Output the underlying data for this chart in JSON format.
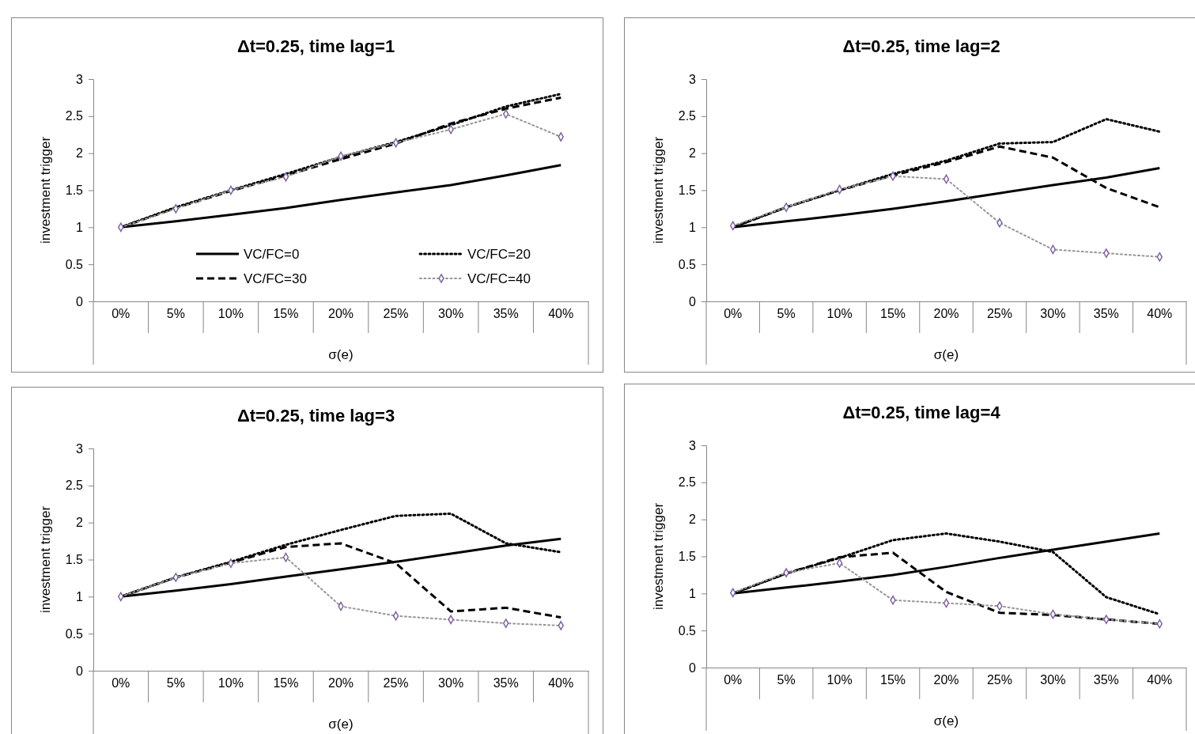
{
  "chart_data": [
    {
      "type": "line",
      "title": "Δt=0.25, time lag=1",
      "xlabel": "σ(e)",
      "ylabel": "investment trigger",
      "categories": [
        "0%",
        "5%",
        "10%",
        "15%",
        "20%",
        "25%",
        "30%",
        "35%",
        "40%"
      ],
      "ylim": [
        0,
        3
      ],
      "yticks": [
        0,
        0.5,
        1,
        1.5,
        2,
        2.5,
        3
      ],
      "grid": false,
      "legend": "bottom",
      "series": [
        {
          "name": "VC/FC=0",
          "color": "#000000",
          "line_style": "solid",
          "marker": "none",
          "values": [
            1,
            1.08,
            1.17,
            1.26,
            1.37,
            1.47,
            1.57,
            1.7,
            1.84
          ]
        },
        {
          "name": "VC/FC=20",
          "color": "#000000",
          "line_style": "dotted",
          "marker": "none",
          "values": [
            1,
            1.27,
            1.5,
            1.72,
            1.95,
            2.15,
            2.38,
            2.63,
            2.8
          ]
        },
        {
          "name": "VC/FC=30",
          "color": "#000000",
          "line_style": "dashed",
          "marker": "none",
          "values": [
            1,
            1.26,
            1.49,
            1.7,
            1.92,
            2.13,
            2.4,
            2.6,
            2.75
          ]
        },
        {
          "name": "VC/FC=40",
          "color": "#969696",
          "line_style": "dotted",
          "marker": "diamond",
          "values": [
            1,
            1.25,
            1.5,
            1.68,
            1.96,
            2.14,
            2.32,
            2.53,
            2.22
          ]
        }
      ]
    },
    {
      "type": "line",
      "title": "Δt=0.25, time lag=2",
      "xlabel": "σ(e)",
      "ylabel": "investment trigger",
      "categories": [
        "0%",
        "5%",
        "10%",
        "15%",
        "20%",
        "25%",
        "30%",
        "35%",
        "40%"
      ],
      "ylim": [
        0,
        3
      ],
      "yticks": [
        0,
        0.5,
        1,
        1.5,
        2,
        2.5,
        3
      ],
      "grid": false,
      "series": [
        {
          "color": "#000000",
          "line_style": "solid",
          "marker": "none",
          "values": [
            1,
            1.08,
            1.16,
            1.25,
            1.35,
            1.46,
            1.57,
            1.67,
            1.8
          ]
        },
        {
          "color": "#000000",
          "line_style": "dotted",
          "marker": "none",
          "values": [
            1,
            1.27,
            1.5,
            1.72,
            1.9,
            2.13,
            2.15,
            2.46,
            2.29
          ]
        },
        {
          "color": "#000000",
          "line_style": "dashed",
          "marker": "none",
          "values": [
            1,
            1.27,
            1.5,
            1.7,
            1.88,
            2.09,
            1.94,
            1.53,
            1.27
          ]
        },
        {
          "color": "#969696",
          "line_style": "dotted",
          "marker": "diamond",
          "values": [
            1.02,
            1.27,
            1.51,
            1.69,
            1.65,
            1.06,
            0.7,
            0.65,
            0.6
          ]
        }
      ]
    },
    {
      "type": "line",
      "title": "Δt=0.25, time lag=3",
      "xlabel": "σ(e)",
      "ylabel": "investment trigger",
      "categories": [
        "0%",
        "5%",
        "10%",
        "15%",
        "20%",
        "25%",
        "30%",
        "35%",
        "40%"
      ],
      "ylim": [
        0,
        3
      ],
      "yticks": [
        0,
        0.5,
        1,
        1.5,
        2,
        2.5,
        3
      ],
      "grid": false,
      "series": [
        {
          "color": "#000000",
          "line_style": "solid",
          "marker": "none",
          "values": [
            1,
            1.08,
            1.17,
            1.27,
            1.37,
            1.47,
            1.58,
            1.69,
            1.78
          ]
        },
        {
          "color": "#000000",
          "line_style": "dotted",
          "marker": "none",
          "values": [
            1,
            1.26,
            1.47,
            1.7,
            1.9,
            2.09,
            2.12,
            1.72,
            1.6
          ]
        },
        {
          "color": "#000000",
          "line_style": "dashed",
          "marker": "none",
          "values": [
            1,
            1.26,
            1.46,
            1.67,
            1.72,
            1.45,
            0.8,
            0.85,
            0.72
          ]
        },
        {
          "color": "#969696",
          "line_style": "dotted",
          "marker": "diamond",
          "values": [
            1,
            1.26,
            1.45,
            1.53,
            0.87,
            0.74,
            0.69,
            0.64,
            0.61
          ]
        }
      ]
    },
    {
      "type": "line",
      "title": "Δt=0.25, time lag=4",
      "xlabel": "σ(e)",
      "ylabel": "investment trigger",
      "categories": [
        "0%",
        "5%",
        "10%",
        "15%",
        "20%",
        "25%",
        "30%",
        "35%",
        "40%"
      ],
      "ylim": [
        0,
        3
      ],
      "yticks": [
        0,
        0.5,
        1,
        1.5,
        2,
        2.5,
        3
      ],
      "grid": false,
      "series": [
        {
          "color": "#000000",
          "line_style": "solid",
          "marker": "none",
          "values": [
            1,
            1.08,
            1.16,
            1.25,
            1.36,
            1.48,
            1.59,
            1.7,
            1.81
          ]
        },
        {
          "color": "#000000",
          "line_style": "dotted",
          "marker": "none",
          "values": [
            1,
            1.27,
            1.48,
            1.72,
            1.81,
            1.7,
            1.56,
            0.95,
            0.72
          ]
        },
        {
          "color": "#000000",
          "line_style": "dashed",
          "marker": "none",
          "values": [
            1,
            1.27,
            1.49,
            1.55,
            1.02,
            0.74,
            0.71,
            0.65,
            0.59
          ]
        },
        {
          "color": "#969696",
          "line_style": "dotted",
          "marker": "diamond",
          "values": [
            1.01,
            1.28,
            1.41,
            0.91,
            0.87,
            0.83,
            0.72,
            0.65,
            0.59
          ]
        }
      ]
    }
  ]
}
